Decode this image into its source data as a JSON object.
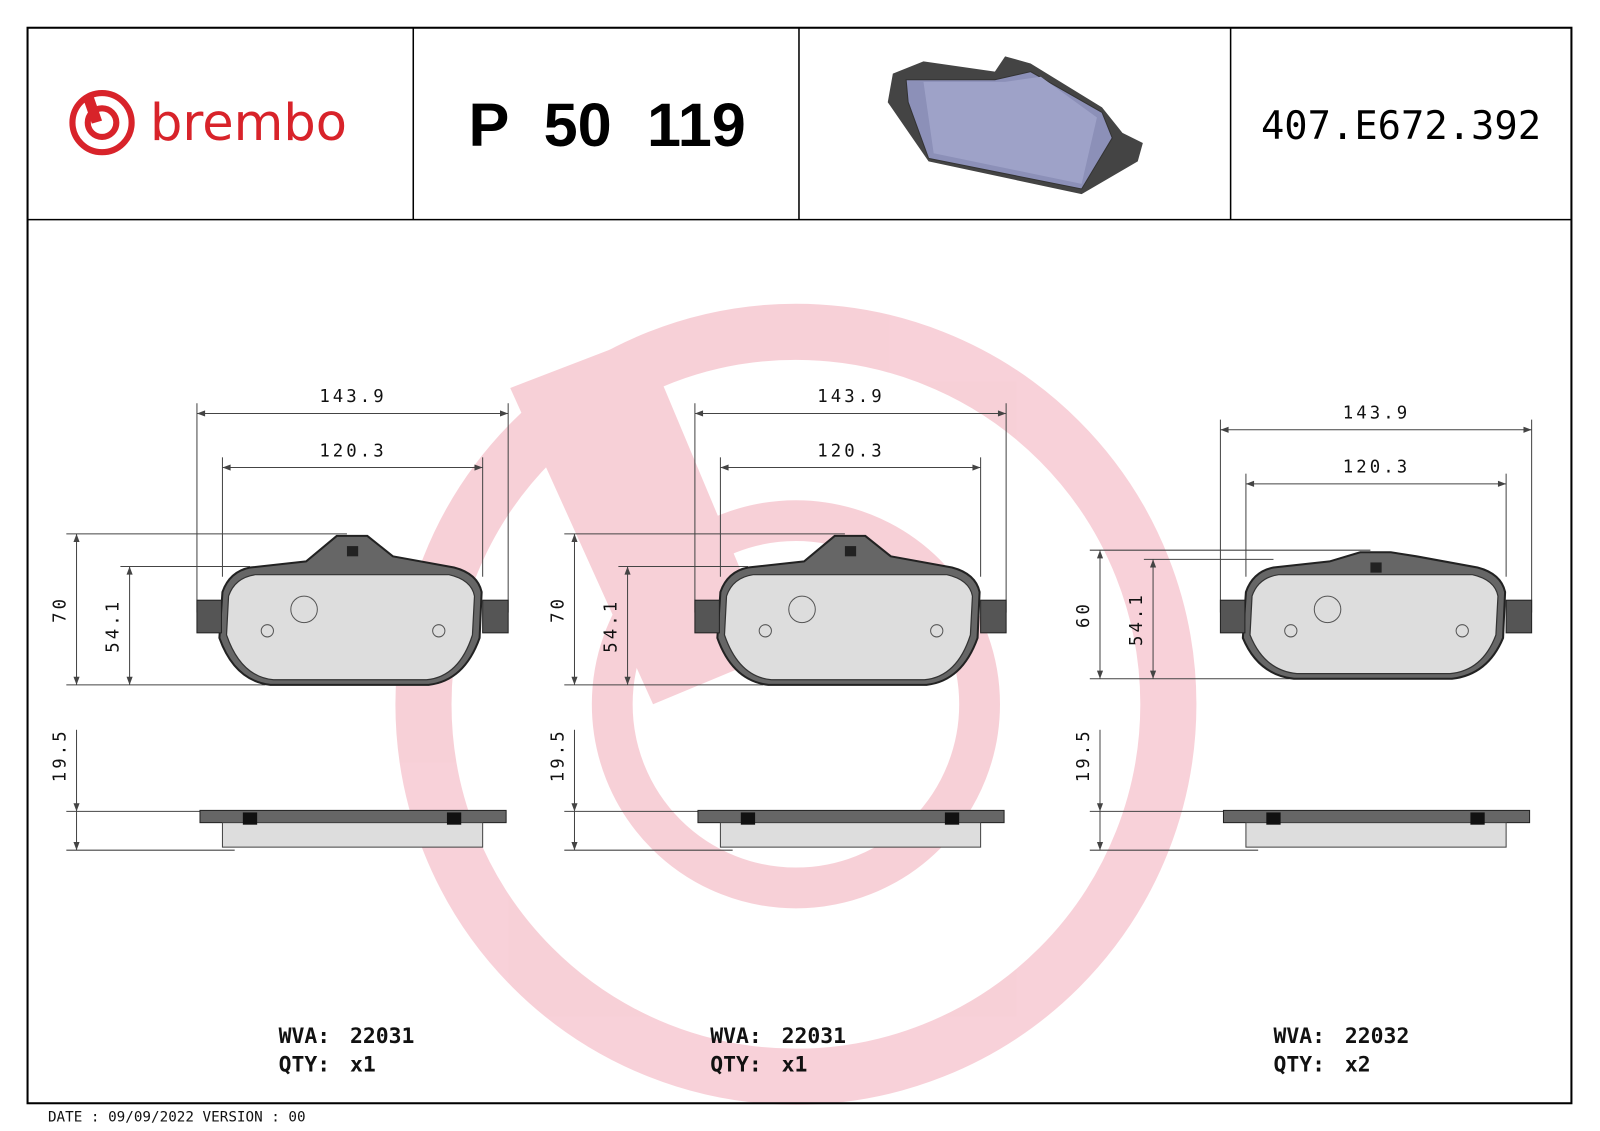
{
  "header": {
    "logo": "brembo",
    "part_number": "P 50 119",
    "code": "407.E672.392"
  },
  "drawings": [
    {
      "width": "143.9",
      "inner_width": "120.3",
      "height": "70",
      "friction_height": "54.1",
      "thickness": "19.5",
      "wva_label": "WVA:",
      "wva": "22031",
      "qty_label": "QTY:",
      "qty": "x1"
    },
    {
      "width": "143.9",
      "inner_width": "120.3",
      "height": "70",
      "friction_height": "54.1",
      "thickness": "19.5",
      "wva_label": "WVA:",
      "wva": "22031",
      "qty_label": "QTY:",
      "qty": "x1"
    },
    {
      "width": "143.9",
      "inner_width": "120.3",
      "height": "60",
      "friction_height": "54.1",
      "thickness": "19.5",
      "wva_label": "WVA:",
      "wva": "22032",
      "qty_label": "QTY:",
      "qty": "x2"
    }
  ],
  "footer": "DATE : 09/09/2022 VERSION : 00"
}
